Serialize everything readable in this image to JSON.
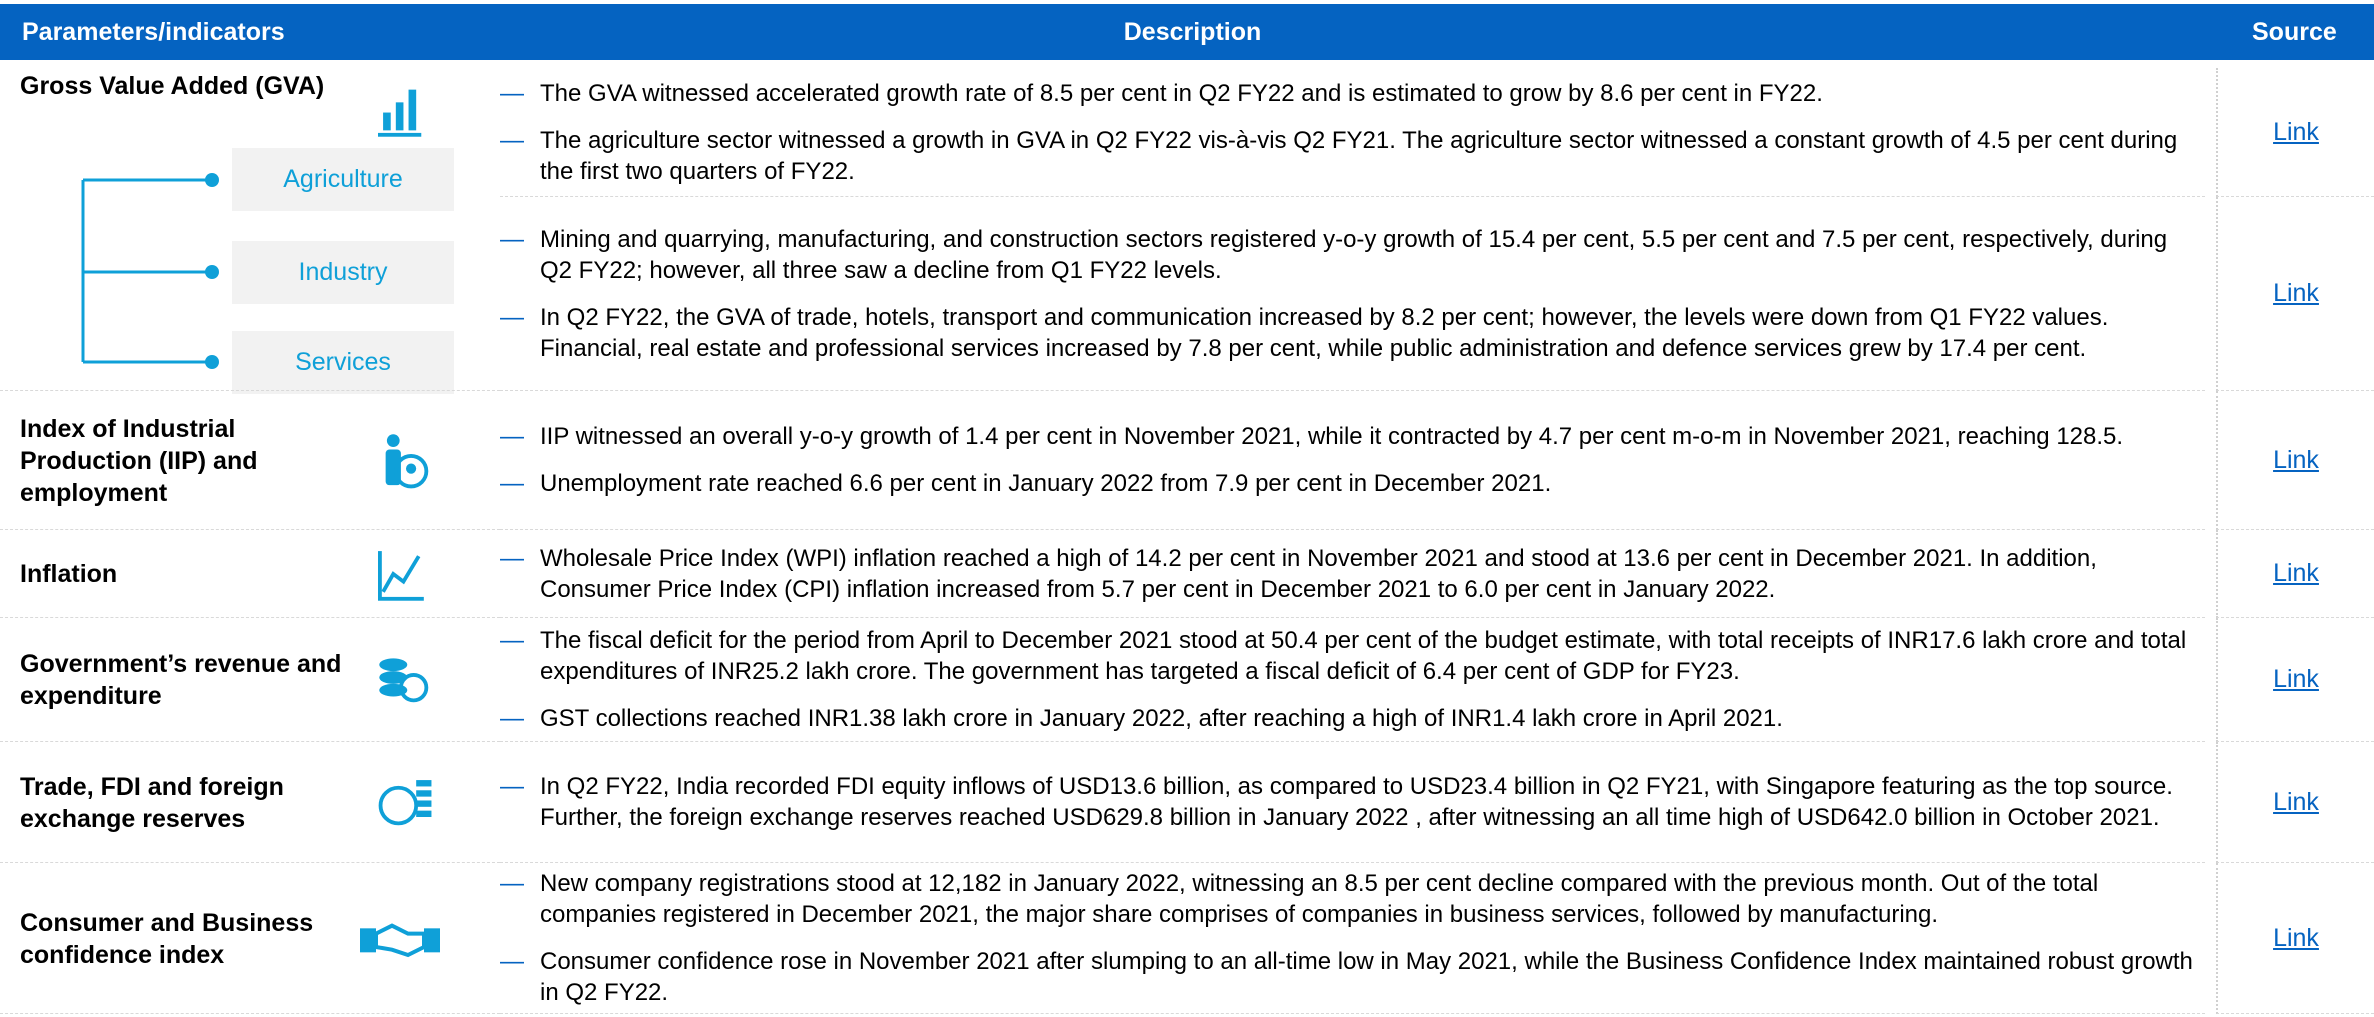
{
  "header": {
    "parameters": "Parameters/indicators",
    "description": "Description",
    "source": "Source"
  },
  "sections": [
    {
      "parameter": "Gross Value Added (GVA)",
      "subsectors": [
        "Agriculture",
        "Industry",
        "Services"
      ],
      "groups": [
        {
          "bullets": [
            "The GVA witnessed accelerated growth rate of 8.5 per cent in Q2 FY22 and is estimated to grow by 8.6 per cent in FY22.",
            "The agriculture sector witnessed a growth in GVA in Q2 FY22 vis-à-vis Q2 FY21. The agriculture sector witnessed a constant growth of 4.5 per cent during the first two quarters of FY22."
          ],
          "link": "Link"
        },
        {
          "bullets": [
            "Mining and quarrying, manufacturing, and construction sectors registered y-o-y growth of 15.4 per cent, 5.5 per cent and 7.5 per cent, respectively, during Q2 FY22; however, all three saw a decline from Q1 FY22 levels.",
            "In Q2 FY22, the GVA of trade, hotels, transport and communication increased by 8.2 per cent; however, the levels were down from Q1 FY22 values. Financial, real estate and professional services increased by 7.8 per cent, while public administration and defence services grew by 17.4 per cent."
          ],
          "link": "Link"
        }
      ]
    },
    {
      "parameter": "Index of Industrial Production (IIP) and employment",
      "groups": [
        {
          "bullets": [
            "IIP witnessed an overall y-o-y growth of 1.4 per cent in November 2021, while it contracted by 4.7 per cent m-o-m in November 2021, reaching 128.5.",
            "Unemployment rate reached 6.6 per cent in January 2022 from 7.9 per cent in December 2021."
          ],
          "link": "Link"
        }
      ]
    },
    {
      "parameter": "Inflation",
      "groups": [
        {
          "bullets": [
            "Wholesale Price Index (WPI) inflation reached a high of 14.2 per cent in November 2021 and stood at 13.6 per cent in December 2021. In addition, Consumer Price Index (CPI) inflation increased from 5.7 per cent in December 2021 to 6.0 per cent in January 2022."
          ],
          "link": "Link"
        }
      ]
    },
    {
      "parameter": "Government’s revenue and expenditure",
      "groups": [
        {
          "bullets": [
            "The fiscal deficit for the period from April to December 2021 stood at 50.4 per cent of the budget estimate, with total receipts of INR17.6 lakh crore and total expenditures of INR25.2 lakh crore. The government has targeted a fiscal deficit of 6.4 per cent of GDP for FY23.",
            "GST collections reached INR1.38 lakh crore in January 2022, after reaching a high of INR1.4 lakh crore in April 2021."
          ],
          "link": "Link"
        }
      ]
    },
    {
      "parameter": "Trade, FDI and foreign exchange reserves",
      "groups": [
        {
          "bullets": [
            "In Q2 FY22, India recorded FDI equity inflows of USD13.6 billion, as compared to USD23.4 billion in Q2 FY21, with Singapore featuring as the top source. Further, the foreign exchange reserves reached USD629.8 billion in January 2022 , after witnessing an all time high of USD642.0 billion in October 2021."
          ],
          "link": "Link"
        }
      ]
    },
    {
      "parameter": "Consumer and Business confidence index",
      "groups": [
        {
          "bullets": [
            "New company registrations stood at 12,182 in January 2022, witnessing an 8.5 per cent decline compared with the previous month. Out of the total companies registered in December 2021, the major share comprises of companies in business services, followed by manufacturing.",
            "Consumer confidence rose in November 2021 after slumping to an all-time low in May 2021, while the Business Confidence Index maintained robust growth in Q2 FY22."
          ],
          "link": "Link"
        }
      ]
    }
  ]
}
